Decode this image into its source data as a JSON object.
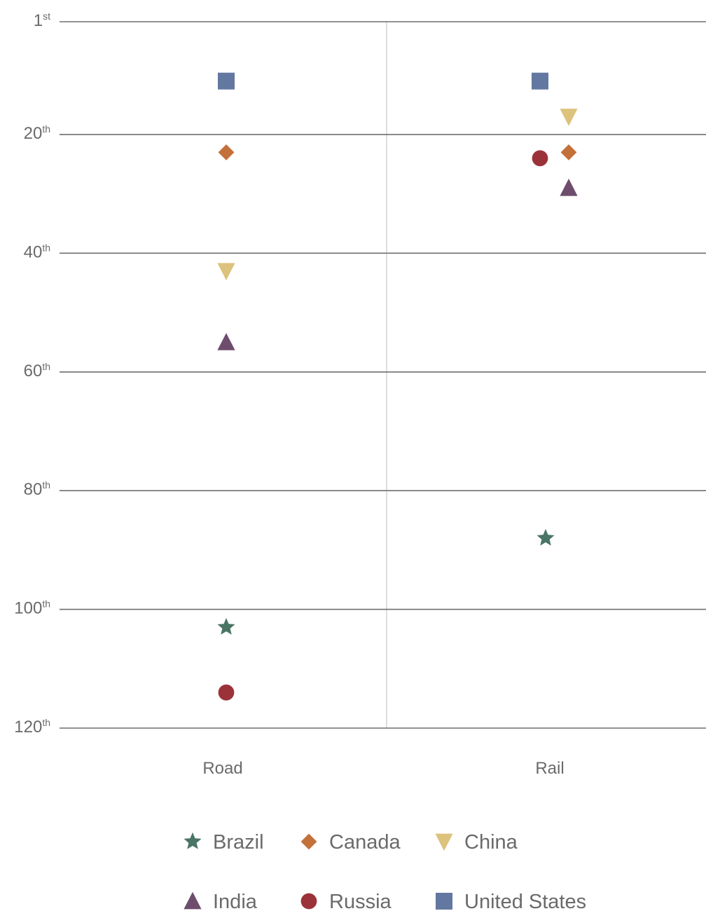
{
  "chart_data": {
    "type": "scatter",
    "categories": [
      "Road",
      "Rail"
    ],
    "y_ticks": [
      {
        "value": 1,
        "number": "1",
        "suffix": "st"
      },
      {
        "value": 20,
        "number": "20",
        "suffix": "th"
      },
      {
        "value": 40,
        "number": "40",
        "suffix": "th"
      },
      {
        "value": 60,
        "number": "60",
        "suffix": "th"
      },
      {
        "value": 80,
        "number": "80",
        "suffix": "th"
      },
      {
        "value": 100,
        "number": "100",
        "suffix": "th"
      },
      {
        "value": 120,
        "number": "120",
        "suffix": "th"
      }
    ],
    "ylim": [
      1,
      120
    ],
    "y_inverted": true,
    "grid": true,
    "legend_placement": "bottom",
    "series": [
      {
        "name": "Brazil",
        "marker": "star",
        "color": "#4a7565",
        "values": [
          103,
          88
        ]
      },
      {
        "name": "Canada",
        "marker": "diamond",
        "color": "#c4703a",
        "values": [
          23,
          23
        ]
      },
      {
        "name": "China",
        "marker": "triangle-down",
        "color": "#dcc27c",
        "values": [
          43,
          17
        ]
      },
      {
        "name": "India",
        "marker": "triangle-up",
        "color": "#6e4c6c",
        "values": [
          55,
          29
        ]
      },
      {
        "name": "Russia",
        "marker": "circle",
        "color": "#9b323a",
        "values": [
          114,
          24
        ]
      },
      {
        "name": "United States",
        "marker": "square",
        "color": "#6378a0",
        "values": [
          11,
          11
        ]
      }
    ]
  }
}
